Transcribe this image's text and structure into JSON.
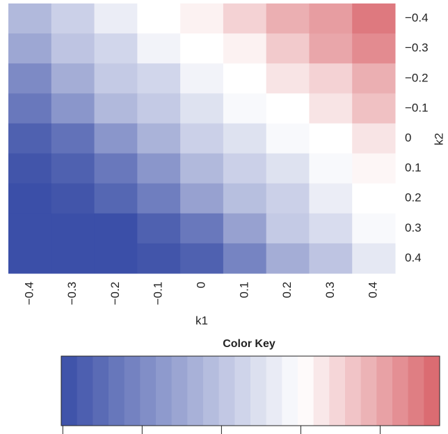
{
  "chart_data": {
    "type": "heatmap",
    "x_label": "k1",
    "y_label": "k2",
    "key_title": "Color Key",
    "x_categories": [
      "−0.4",
      "−0.3",
      "−0.2",
      "−0.1",
      "0",
      "0.1",
      "0.2",
      "0.3",
      "0.4"
    ],
    "y_categories": [
      "−0.4",
      "−0.3",
      "−0.2",
      "−0.1",
      "0",
      "0.1",
      "0.2",
      "0.3",
      "0.4"
    ],
    "values": [
      [
        -1.2,
        -0.8,
        -0.3,
        0,
        0.15,
        0.5,
        0.9,
        1.1,
        1.5
      ],
      [
        -1.5,
        -1.0,
        -0.7,
        -0.2,
        0,
        0.15,
        0.6,
        1.0,
        1.3
      ],
      [
        -2.0,
        -1.4,
        -0.9,
        -0.7,
        -0.2,
        0,
        0.3,
        0.5,
        0.9
      ],
      [
        -2.3,
        -1.8,
        -1.2,
        -0.9,
        -0.5,
        -0.1,
        0,
        0.3,
        0.7
      ],
      [
        -2.7,
        -2.4,
        -1.8,
        -1.3,
        -0.8,
        -0.5,
        -0.1,
        0,
        0.3
      ],
      [
        -2.9,
        -2.7,
        -2.3,
        -1.8,
        -1.2,
        -0.8,
        -0.5,
        -0.1,
        0.1
      ],
      [
        -3.0,
        -2.9,
        -2.6,
        -2.2,
        -1.6,
        -1.1,
        -0.8,
        -0.3,
        0
      ],
      [
        -3.0,
        -3.0,
        -3.0,
        -2.7,
        -2.3,
        -1.6,
        -0.9,
        -0.6,
        -0.1
      ],
      [
        -3.0,
        -3.0,
        -3.0,
        -2.9,
        -2.7,
        -2.1,
        -1.4,
        -1.0,
        -0.4
      ]
    ],
    "low_color": "#3a4ea7",
    "mid_color": "#ffffff",
    "high_color": "#d9636a",
    "zlim": [
      -3.02,
      1.75
    ],
    "zticks": [
      -3,
      -2,
      -1,
      0,
      1
    ]
  }
}
